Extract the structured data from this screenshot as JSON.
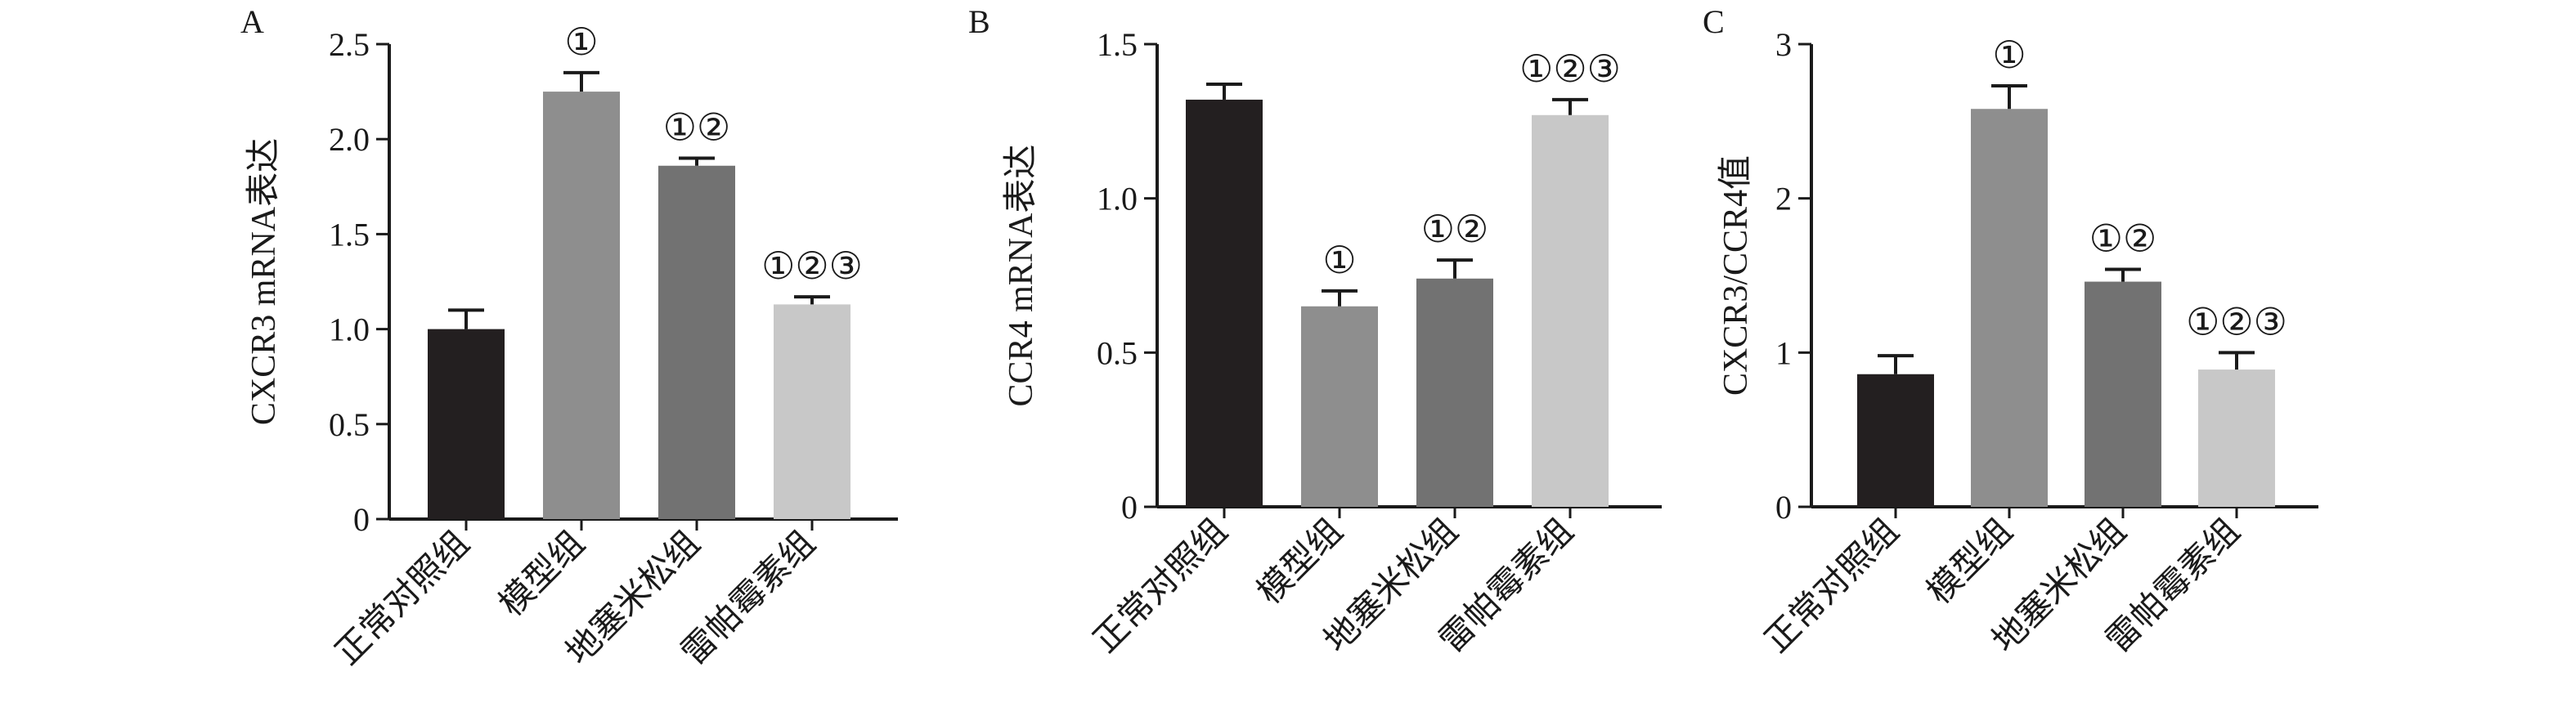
{
  "chart_data": [
    {
      "type": "bar",
      "panel": "A",
      "ylabel": "CXCR3 mRNA表达",
      "ylim": [
        0,
        2.5
      ],
      "yticks": [
        "0",
        "0.5",
        "1.0",
        "1.5",
        "2.0",
        "2.5"
      ],
      "categories": [
        "正常对照组",
        "模型组",
        "地塞米松组",
        "雷帕霉素组"
      ],
      "values": [
        1.0,
        2.25,
        1.86,
        1.13
      ],
      "errors": [
        0.1,
        0.1,
        0.04,
        0.04
      ],
      "significance": [
        "",
        "①",
        "①②",
        "①②③"
      ],
      "colors": [
        "#231f20",
        "#8e8e8e",
        "#727272",
        "#c8c8c8"
      ]
    },
    {
      "type": "bar",
      "panel": "B",
      "ylabel": "CCR4 mRNA表达",
      "ylim": [
        0,
        1.5
      ],
      "yticks": [
        "0",
        "0.5",
        "1.0",
        "1.5"
      ],
      "categories": [
        "正常对照组",
        "模型组",
        "地塞米松组",
        "雷帕霉素组"
      ],
      "values": [
        1.32,
        0.65,
        0.74,
        1.27
      ],
      "errors": [
        0.05,
        0.05,
        0.06,
        0.05
      ],
      "significance": [
        "",
        "①",
        "①②",
        "①②③"
      ],
      "colors": [
        "#231f20",
        "#8e8e8e",
        "#727272",
        "#c8c8c8"
      ]
    },
    {
      "type": "bar",
      "panel": "C",
      "ylabel": "CXCR3/CCR4值",
      "ylim": [
        0,
        3
      ],
      "yticks": [
        "0",
        "1",
        "2",
        "3"
      ],
      "categories": [
        "正常对照组",
        "模型组",
        "地塞米松组",
        "雷帕霉素组"
      ],
      "values": [
        0.86,
        2.58,
        1.46,
        0.89
      ],
      "errors": [
        0.12,
        0.15,
        0.08,
        0.11
      ],
      "significance": [
        "",
        "①",
        "①②",
        "①②③"
      ],
      "colors": [
        "#231f20",
        "#8e8e8e",
        "#727272",
        "#c8c8c8"
      ]
    }
  ]
}
